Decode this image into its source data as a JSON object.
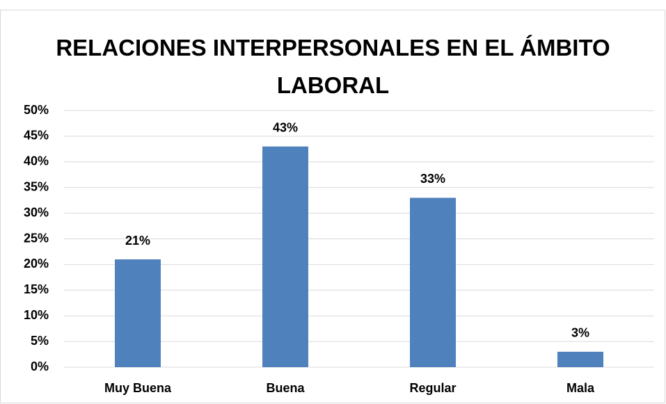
{
  "chart_data": {
    "type": "bar",
    "title": "RELACIONES INTERPERSONALES EN EL ÁMBITO LABORAL",
    "categories": [
      "Muy Buena",
      "Buena",
      "Regular",
      "Mala"
    ],
    "values": [
      21,
      43,
      33,
      3
    ],
    "value_labels": [
      "21%",
      "43%",
      "33%",
      "3%"
    ],
    "color": "#4f81bd",
    "ylim": [
      0,
      50
    ],
    "yticks": [
      {
        "value": 0,
        "label": "0%"
      },
      {
        "value": 5,
        "label": "5%"
      },
      {
        "value": 10,
        "label": "10%"
      },
      {
        "value": 15,
        "label": "15%"
      },
      {
        "value": 20,
        "label": "20%"
      },
      {
        "value": 25,
        "label": "25%"
      },
      {
        "value": 30,
        "label": "30%"
      },
      {
        "value": 35,
        "label": "35%"
      },
      {
        "value": 40,
        "label": "40%"
      },
      {
        "value": 45,
        "label": "45%"
      },
      {
        "value": 50,
        "label": "50%"
      }
    ],
    "grid": true
  }
}
